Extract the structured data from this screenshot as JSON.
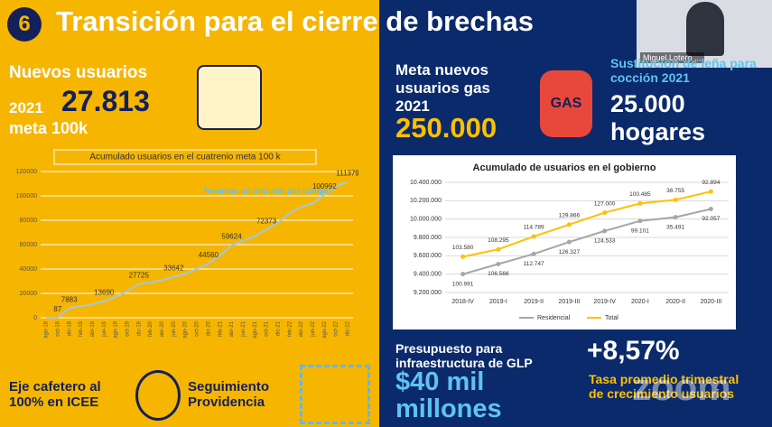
{
  "header": {
    "number": "6",
    "title": "Transición para el cierre de brechas"
  },
  "left": {
    "heading": "Nuevos usuarios",
    "year": "2021",
    "count": "27.813",
    "goal": "meta 100k",
    "footer_1": "Eje cafetero al 100% en ICEE",
    "footer_2": "Seguimiento Providencia"
  },
  "right": {
    "gas_heading": "Meta nuevos usuarios gas 2021",
    "gas_value": "250.000",
    "gas_icon": "GAS",
    "wood_heading": "Sustitución de leña para cocción 2021",
    "wood_value": "25.000 hogares",
    "budget_heading": "Presupuesto para infraestructura de GLP",
    "budget_value": "$40 mil millones",
    "growth_value": "+8,57%",
    "growth_heading": "Tasa promedio trimestral de crecimiento usuarios"
  },
  "video": {
    "name": "Miguel Lotero ..."
  },
  "watermark": "zoom",
  "chart_data": [
    {
      "type": "line",
      "title": "Acumulado usuarios en el cuatrenio meta 100 k",
      "annotation": "Tenemos un reto aún por cumplir",
      "categories": [
        "ago-18",
        "oct-18",
        "dic-18",
        "feb-19",
        "abr-19",
        "jun-19",
        "ago-19",
        "oct-19",
        "dic-19",
        "feb-20",
        "abr-20",
        "jun-20",
        "ago-20",
        "oct-20",
        "dic-20",
        "feb-21",
        "abr-21",
        "jun-21",
        "ago-21",
        "oct-21",
        "dic-21",
        "feb-22",
        "abr-22",
        "jun-22",
        "ago-22",
        "oct-22",
        "dic-22"
      ],
      "values": [
        0,
        87,
        7883,
        9500,
        11000,
        13690,
        17000,
        22000,
        27725,
        29000,
        31000,
        33642,
        36000,
        40000,
        44560,
        51000,
        59624,
        63000,
        67000,
        72373,
        78000,
        86000,
        91000,
        94000,
        100992,
        108000,
        111379
      ],
      "value_labels": [
        null,
        "87",
        "7883",
        null,
        null,
        "13690",
        null,
        null,
        "27725",
        null,
        null,
        "33642",
        null,
        null,
        "44560",
        null,
        "59624",
        null,
        null,
        "72373",
        null,
        null,
        null,
        null,
        "100992",
        null,
        "111379"
      ],
      "color": "#9ec9e2",
      "ylim": [
        0,
        120000
      ],
      "yticks": [
        0,
        20000,
        40000,
        60000,
        80000,
        100000,
        120000
      ],
      "grid": true
    },
    {
      "type": "line",
      "title": "Acumulado de usuarios en el gobierno",
      "categories": [
        "2018-IV",
        "2019-I",
        "2019-II",
        "2019-III",
        "2019-IV",
        "2020-I",
        "2020-II",
        "2020-III"
      ],
      "series": [
        {
          "name": "Residencial",
          "color": "#a6a6a6",
          "values": [
            9400000,
            9510000,
            9620000,
            9750000,
            9870000,
            9980000,
            10020000,
            10110000
          ],
          "annotations": [
            "100.991",
            "106.566",
            "112.747",
            "126.327",
            "124.533",
            "99.101",
            "35.491",
            "92.057"
          ]
        },
        {
          "name": "Total",
          "color": "#ffc000",
          "values": [
            9590000,
            9670000,
            9810000,
            9940000,
            10070000,
            10170000,
            10210000,
            10300000
          ],
          "annotations": [
            "103.580",
            "108.295",
            "114.789",
            "129.866",
            "127.000",
            "100.485",
            "36.755",
            "92.894"
          ]
        }
      ],
      "ylim": [
        9200000,
        10400000
      ],
      "yticks": [
        {
          "value": 9200000,
          "label": "9.200.000"
        },
        {
          "value": 9400000,
          "label": "9.400.000"
        },
        {
          "value": 9600000,
          "label": "9.600.000"
        },
        {
          "value": 9800000,
          "label": "9.800.000"
        },
        {
          "value": 10000000,
          "label": "10.000.000"
        },
        {
          "value": 10200000,
          "label": "10.200.000"
        },
        {
          "value": 10400000,
          "label": "10.400.000"
        }
      ],
      "grid": true,
      "legend": "bottom"
    }
  ]
}
